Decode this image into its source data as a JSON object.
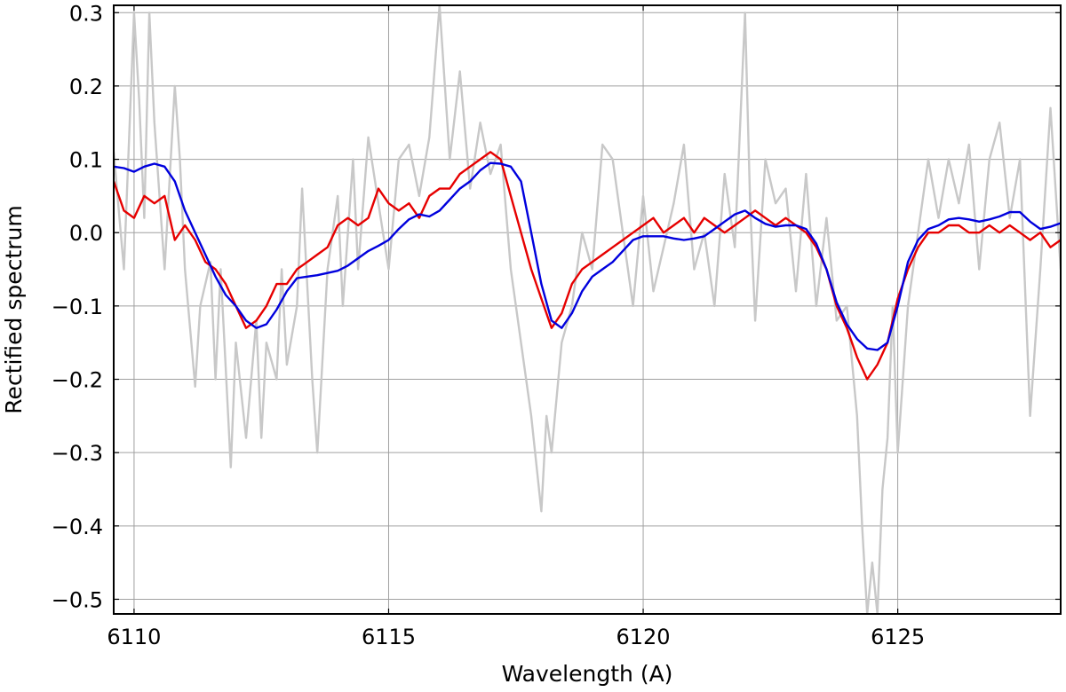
{
  "chart_data": {
    "type": "line",
    "xlabel": "Wavelength (A)",
    "ylabel": "Rectified spectrum",
    "xlim": [
      6109.6,
      6128.2
    ],
    "ylim": [
      -0.52,
      0.31
    ],
    "x_ticks": [
      6110,
      6115,
      6120,
      6125
    ],
    "x_tick_labels": [
      "6110",
      "6115",
      "6120",
      "6125"
    ],
    "y_ticks": [
      0.3,
      0.2,
      0.1,
      0.0,
      -0.1,
      -0.2,
      -0.3,
      -0.4,
      -0.5
    ],
    "y_tick_labels": [
      "0.3",
      "0.2",
      "0.1",
      "0.0",
      "−0.1",
      "−0.2",
      "−0.3",
      "−0.4",
      "−0.5"
    ],
    "grid": true,
    "series": [
      {
        "color": "#c8c8c8",
        "x": [
          6109.6,
          6109.8,
          6110.0,
          6110.1,
          6110.2,
          6110.3,
          6110.4,
          6110.6,
          6110.8,
          6110.9,
          6111.0,
          6111.2,
          6111.3,
          6111.5,
          6111.6,
          6111.7,
          6111.9,
          6112.0,
          6112.2,
          6112.4,
          6112.5,
          6112.6,
          6112.8,
          6112.9,
          6113.0,
          6113.2,
          6113.3,
          6113.5,
          6113.6,
          6113.8,
          6114.0,
          6114.1,
          6114.3,
          6114.4,
          6114.6,
          6114.8,
          6115.0,
          6115.2,
          6115.4,
          6115.6,
          6115.8,
          6116.0,
          6116.2,
          6116.4,
          6116.6,
          6116.8,
          6117.0,
          6117.2,
          6117.4,
          6117.6,
          6117.8,
          6118.0,
          6118.1,
          6118.2,
          6118.4,
          6118.6,
          6118.8,
          6119.0,
          6119.2,
          6119.4,
          6119.6,
          6119.8,
          6120.0,
          6120.2,
          6120.4,
          6120.6,
          6120.8,
          6121.0,
          6121.2,
          6121.4,
          6121.6,
          6121.8,
          6122.0,
          6122.1,
          6122.2,
          6122.4,
          6122.6,
          6122.8,
          6123.0,
          6123.2,
          6123.4,
          6123.6,
          6123.8,
          6124.0,
          6124.2,
          6124.3,
          6124.4,
          6124.5,
          6124.6,
          6124.7,
          6124.8,
          6124.9,
          6125.0,
          6125.2,
          6125.4,
          6125.6,
          6125.8,
          6126.0,
          6126.2,
          6126.4,
          6126.6,
          6126.8,
          6127.0,
          6127.2,
          6127.4,
          6127.6,
          6127.8,
          6128.0,
          6128.2
        ],
        "y": [
          0.11,
          -0.05,
          0.3,
          0.18,
          0.02,
          0.3,
          0.15,
          -0.05,
          0.2,
          0.1,
          -0.05,
          -0.21,
          -0.1,
          -0.04,
          -0.2,
          -0.05,
          -0.32,
          -0.15,
          -0.28,
          -0.12,
          -0.28,
          -0.15,
          -0.2,
          -0.05,
          -0.18,
          -0.1,
          0.06,
          -0.2,
          -0.3,
          -0.05,
          0.05,
          -0.1,
          0.1,
          -0.05,
          0.13,
          0.04,
          -0.05,
          0.1,
          0.12,
          0.05,
          0.13,
          0.31,
          0.1,
          0.22,
          0.06,
          0.15,
          0.08,
          0.12,
          -0.05,
          -0.15,
          -0.25,
          -0.38,
          -0.25,
          -0.3,
          -0.15,
          -0.1,
          0.0,
          -0.05,
          0.12,
          0.1,
          0.0,
          -0.1,
          0.05,
          -0.08,
          -0.02,
          0.04,
          0.12,
          -0.05,
          0.0,
          -0.1,
          0.08,
          -0.02,
          0.3,
          0.04,
          -0.12,
          0.1,
          0.04,
          0.06,
          -0.08,
          0.08,
          -0.1,
          0.02,
          -0.12,
          -0.1,
          -0.25,
          -0.4,
          -0.52,
          -0.45,
          -0.52,
          -0.35,
          -0.28,
          -0.1,
          -0.3,
          -0.1,
          0.0,
          0.1,
          0.02,
          0.1,
          0.04,
          0.12,
          -0.05,
          0.1,
          0.15,
          0.02,
          0.1,
          -0.25,
          -0.05,
          0.17,
          -0.05
        ]
      },
      {
        "color": "#e60000",
        "x": [
          6109.6,
          6109.8,
          6110.0,
          6110.2,
          6110.4,
          6110.6,
          6110.8,
          6111.0,
          6111.2,
          6111.4,
          6111.6,
          6111.8,
          6112.0,
          6112.2,
          6112.4,
          6112.6,
          6112.8,
          6113.0,
          6113.2,
          6113.4,
          6113.6,
          6113.8,
          6114.0,
          6114.2,
          6114.4,
          6114.6,
          6114.8,
          6115.0,
          6115.2,
          6115.4,
          6115.6,
          6115.8,
          6116.0,
          6116.2,
          6116.4,
          6116.6,
          6116.8,
          6117.0,
          6117.2,
          6117.4,
          6117.6,
          6117.8,
          6118.0,
          6118.2,
          6118.4,
          6118.6,
          6118.8,
          6119.0,
          6119.2,
          6119.4,
          6119.6,
          6119.8,
          6120.0,
          6120.2,
          6120.4,
          6120.6,
          6120.8,
          6121.0,
          6121.2,
          6121.4,
          6121.6,
          6121.8,
          6122.0,
          6122.2,
          6122.4,
          6122.6,
          6122.8,
          6123.0,
          6123.2,
          6123.4,
          6123.6,
          6123.8,
          6124.0,
          6124.2,
          6124.4,
          6124.6,
          6124.8,
          6125.0,
          6125.2,
          6125.4,
          6125.6,
          6125.8,
          6126.0,
          6126.2,
          6126.4,
          6126.6,
          6126.8,
          6127.0,
          6127.2,
          6127.4,
          6127.6,
          6127.8,
          6128.0,
          6128.2
        ],
        "y": [
          0.07,
          0.03,
          0.02,
          0.05,
          0.04,
          0.05,
          -0.01,
          0.01,
          -0.01,
          -0.04,
          -0.05,
          -0.07,
          -0.1,
          -0.13,
          -0.12,
          -0.1,
          -0.07,
          -0.07,
          -0.05,
          -0.04,
          -0.03,
          -0.02,
          0.01,
          0.02,
          0.01,
          0.02,
          0.06,
          0.04,
          0.03,
          0.04,
          0.02,
          0.05,
          0.06,
          0.06,
          0.08,
          0.09,
          0.1,
          0.11,
          0.1,
          0.05,
          0.0,
          -0.05,
          -0.09,
          -0.13,
          -0.11,
          -0.07,
          -0.05,
          -0.04,
          -0.03,
          -0.02,
          -0.01,
          0.0,
          0.01,
          0.02,
          0.0,
          0.01,
          0.02,
          0.0,
          0.02,
          0.01,
          0.0,
          0.01,
          0.02,
          0.03,
          0.02,
          0.01,
          0.02,
          0.01,
          0.0,
          -0.02,
          -0.05,
          -0.1,
          -0.13,
          -0.17,
          -0.2,
          -0.18,
          -0.15,
          -0.09,
          -0.05,
          -0.02,
          0.0,
          0.0,
          0.01,
          0.01,
          0.0,
          0.0,
          0.01,
          0.0,
          0.01,
          0.0,
          -0.01,
          0.0,
          -0.02,
          -0.01
        ]
      },
      {
        "color": "#0000dd",
        "x": [
          6109.6,
          6109.8,
          6110.0,
          6110.2,
          6110.4,
          6110.6,
          6110.8,
          6111.0,
          6111.2,
          6111.4,
          6111.6,
          6111.8,
          6112.0,
          6112.2,
          6112.4,
          6112.6,
          6112.8,
          6113.0,
          6113.2,
          6113.4,
          6113.6,
          6113.8,
          6114.0,
          6114.2,
          6114.4,
          6114.6,
          6114.8,
          6115.0,
          6115.2,
          6115.4,
          6115.6,
          6115.8,
          6116.0,
          6116.2,
          6116.4,
          6116.6,
          6116.8,
          6117.0,
          6117.2,
          6117.4,
          6117.6,
          6117.8,
          6118.0,
          6118.2,
          6118.4,
          6118.6,
          6118.8,
          6119.0,
          6119.2,
          6119.4,
          6119.6,
          6119.8,
          6120.0,
          6120.2,
          6120.4,
          6120.6,
          6120.8,
          6121.0,
          6121.2,
          6121.4,
          6121.6,
          6121.8,
          6122.0,
          6122.2,
          6122.4,
          6122.6,
          6122.8,
          6123.0,
          6123.2,
          6123.4,
          6123.6,
          6123.8,
          6124.0,
          6124.2,
          6124.4,
          6124.6,
          6124.8,
          6125.0,
          6125.2,
          6125.4,
          6125.6,
          6125.8,
          6126.0,
          6126.2,
          6126.4,
          6126.6,
          6126.8,
          6127.0,
          6127.2,
          6127.4,
          6127.6,
          6127.8,
          6128.0,
          6128.2
        ],
        "y": [
          0.09,
          0.088,
          0.083,
          0.09,
          0.094,
          0.09,
          0.07,
          0.03,
          0.0,
          -0.03,
          -0.06,
          -0.085,
          -0.1,
          -0.12,
          -0.13,
          -0.125,
          -0.105,
          -0.08,
          -0.062,
          -0.06,
          -0.058,
          -0.055,
          -0.052,
          -0.045,
          -0.035,
          -0.025,
          -0.018,
          -0.01,
          0.005,
          0.018,
          0.025,
          0.022,
          0.03,
          0.045,
          0.06,
          0.07,
          0.085,
          0.095,
          0.094,
          0.09,
          0.07,
          0.0,
          -0.07,
          -0.12,
          -0.13,
          -0.11,
          -0.08,
          -0.06,
          -0.05,
          -0.04,
          -0.025,
          -0.01,
          -0.005,
          -0.005,
          -0.005,
          -0.008,
          -0.01,
          -0.008,
          -0.005,
          0.005,
          0.015,
          0.025,
          0.03,
          0.02,
          0.012,
          0.008,
          0.01,
          0.01,
          0.005,
          -0.015,
          -0.05,
          -0.095,
          -0.125,
          -0.145,
          -0.158,
          -0.16,
          -0.15,
          -0.1,
          -0.04,
          -0.01,
          0.005,
          0.01,
          0.018,
          0.02,
          0.018,
          0.015,
          0.018,
          0.022,
          0.028,
          0.028,
          0.015,
          0.005,
          0.008,
          0.013
        ]
      }
    ]
  }
}
